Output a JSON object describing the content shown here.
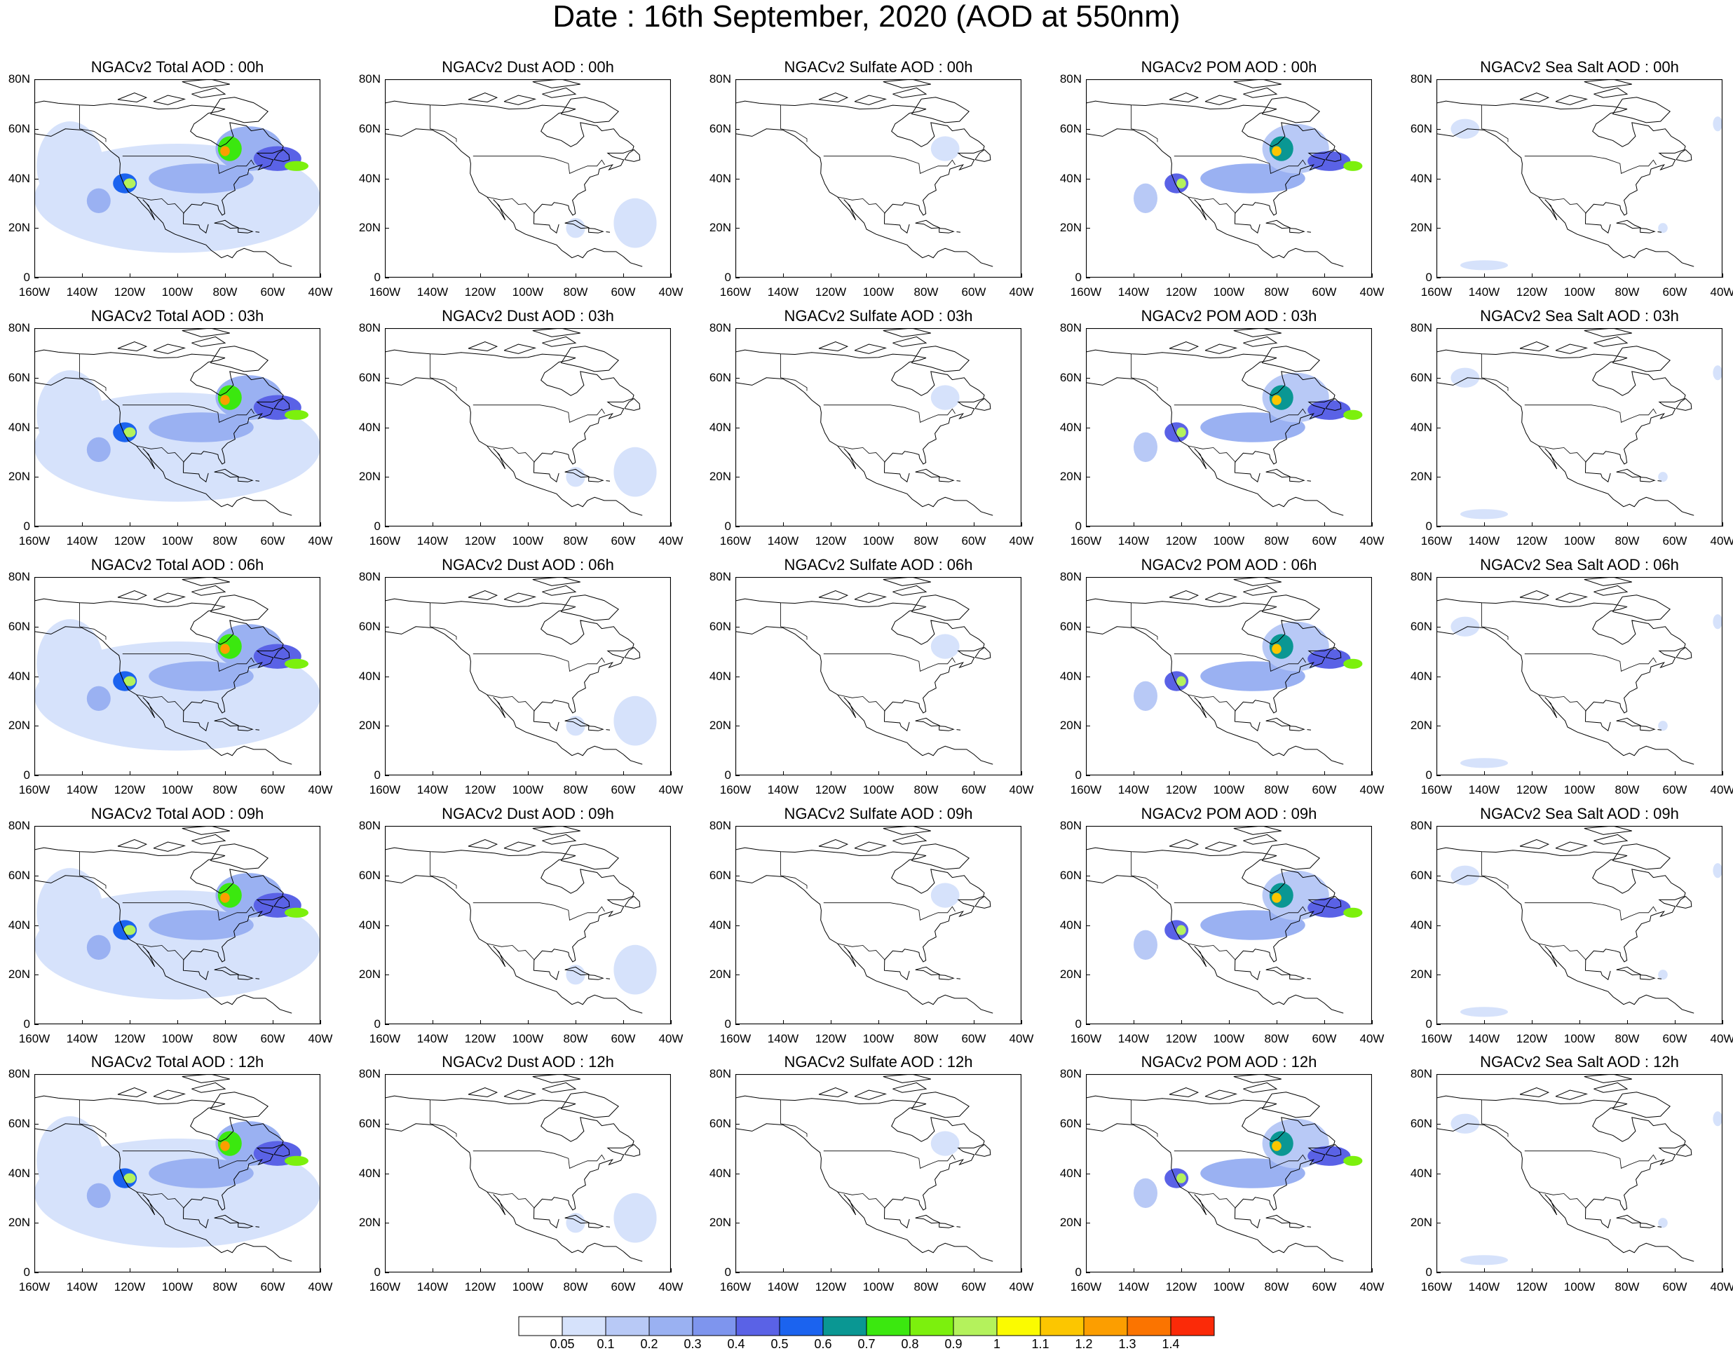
{
  "figure": {
    "title": "Date : 16th September, 2020 (AOD at 550nm)"
  },
  "axes": {
    "lat_ticks": [
      "0",
      "20N",
      "40N",
      "60N",
      "80N"
    ],
    "lon_ticks": [
      "160W",
      "140W",
      "120W",
      "100W",
      "80W",
      "60W",
      "40W"
    ],
    "lat_range": [
      0,
      80
    ],
    "lon_range": [
      -160,
      -40
    ]
  },
  "panels": [
    {
      "title": "NGACv2 Total AOD : 00h",
      "species": "total",
      "hour": 0
    },
    {
      "title": "NGACv2 Dust AOD : 00h",
      "species": "dust",
      "hour": 0
    },
    {
      "title": "NGACv2 Sulfate AOD : 00h",
      "species": "sulfate",
      "hour": 0
    },
    {
      "title": "NGACv2 POM AOD : 00h",
      "species": "pom",
      "hour": 0
    },
    {
      "title": "NGACv2 Sea Salt AOD : 00h",
      "species": "seasalt",
      "hour": 0
    },
    {
      "title": "NGACv2 Total AOD : 03h",
      "species": "total",
      "hour": 3
    },
    {
      "title": "NGACv2 Dust AOD : 03h",
      "species": "dust",
      "hour": 3
    },
    {
      "title": "NGACv2 Sulfate AOD : 03h",
      "species": "sulfate",
      "hour": 3
    },
    {
      "title": "NGACv2 POM AOD : 03h",
      "species": "pom",
      "hour": 3
    },
    {
      "title": "NGACv2 Sea Salt AOD : 03h",
      "species": "seasalt",
      "hour": 3
    },
    {
      "title": "NGACv2 Total AOD : 06h",
      "species": "total",
      "hour": 6
    },
    {
      "title": "NGACv2 Dust AOD : 06h",
      "species": "dust",
      "hour": 6
    },
    {
      "title": "NGACv2 Sulfate AOD : 06h",
      "species": "sulfate",
      "hour": 6
    },
    {
      "title": "NGACv2 POM AOD : 06h",
      "species": "pom",
      "hour": 6
    },
    {
      "title": "NGACv2 Sea Salt AOD : 06h",
      "species": "seasalt",
      "hour": 6
    },
    {
      "title": "NGACv2 Total AOD : 09h",
      "species": "total",
      "hour": 9
    },
    {
      "title": "NGACv2 Dust AOD : 09h",
      "species": "dust",
      "hour": 9
    },
    {
      "title": "NGACv2 Sulfate AOD : 09h",
      "species": "sulfate",
      "hour": 9
    },
    {
      "title": "NGACv2 POM AOD : 09h",
      "species": "pom",
      "hour": 9
    },
    {
      "title": "NGACv2 Sea Salt  AOD : 09h",
      "species": "seasalt",
      "hour": 9
    },
    {
      "title": "NGACv2 Total AOD  : 12h",
      "species": "total",
      "hour": 12
    },
    {
      "title": "NGACv2 Dust AOD : 12h",
      "species": "dust",
      "hour": 12
    },
    {
      "title": "NGACv2 Sulfate AOD : 12h",
      "species": "sulfate",
      "hour": 12
    },
    {
      "title": "NGACv2 POM  AOD : 12h",
      "species": "pom",
      "hour": 12
    },
    {
      "title": "NGACv2 Sea Salt  AOD : 12h",
      "species": "seasalt",
      "hour": 12
    }
  ],
  "colorbar": {
    "labels": [
      "0.05",
      "0.1",
      "0.2",
      "0.3",
      "0.4",
      "0.5",
      "0.6",
      "0.7",
      "0.8",
      "0.9",
      "1",
      "1.1",
      "1.2",
      "1.3",
      "1.4"
    ],
    "colors": [
      "#ffffff",
      "#d6e2fb",
      "#b8c9f6",
      "#9ab1f2",
      "#7e95ee",
      "#5a62e6",
      "#1b63ef",
      "#0a9793",
      "#3be80f",
      "#7cf00d",
      "#b4f25c",
      "#fbfb00",
      "#fcc600",
      "#fc9e00",
      "#fb7400",
      "#fb2a08"
    ]
  }
}
